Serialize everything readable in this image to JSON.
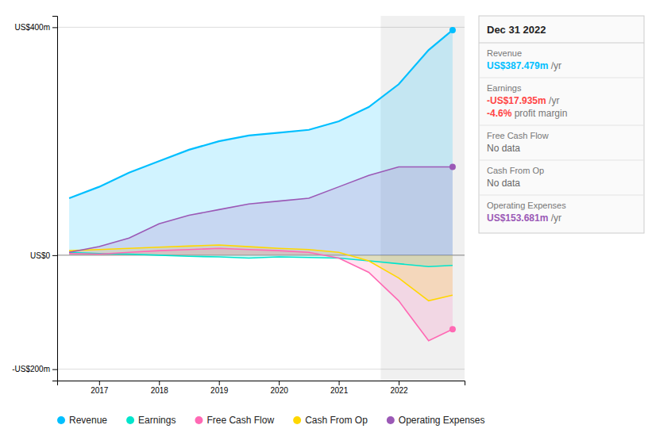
{
  "chart_data": {
    "type": "area",
    "x": [
      2016.5,
      2017,
      2017.5,
      2018,
      2018.5,
      2019,
      2019.5,
      2020,
      2020.5,
      2021,
      2021.5,
      2022,
      2022.5,
      2022.9
    ],
    "series": [
      {
        "name": "Revenue",
        "color": "#00bfff",
        "marker": "circle",
        "values": [
          100,
          120,
          145,
          165,
          185,
          200,
          210,
          215,
          220,
          235,
          260,
          300,
          360,
          395
        ]
      },
      {
        "name": "Earnings",
        "color": "#00e5cc",
        "values": [
          5,
          3,
          2,
          0,
          -2,
          -3,
          -5,
          -3,
          -4,
          -5,
          -10,
          -15,
          -20,
          -18
        ]
      },
      {
        "name": "Free Cash Flow",
        "color": "#ff69b4",
        "marker": "circle",
        "values": [
          3,
          2,
          5,
          8,
          10,
          12,
          10,
          8,
          5,
          -5,
          -30,
          -80,
          -150,
          -130
        ]
      },
      {
        "name": "Cash From Op",
        "color": "#ffd700",
        "values": [
          8,
          10,
          12,
          14,
          16,
          18,
          15,
          12,
          10,
          5,
          -10,
          -40,
          -80,
          -70
        ]
      },
      {
        "name": "Operating Expenses",
        "color": "#9b59b6",
        "marker": "circle",
        "values": [
          5,
          15,
          30,
          55,
          70,
          80,
          90,
          95,
          100,
          120,
          140,
          155,
          155,
          155
        ]
      }
    ],
    "xlim": [
      2016.3,
      2023.1
    ],
    "xticks": [
      2017,
      2018,
      2019,
      2020,
      2021,
      2022
    ],
    "ylim": [
      -220,
      420
    ],
    "yticks": [
      {
        "value": -200,
        "label": "-US$200m"
      },
      {
        "value": 0,
        "label": "US$0"
      },
      {
        "value": 400,
        "label": "US$400m"
      }
    ],
    "grid": true,
    "highlight_x": 2021.7,
    "info_box": {
      "title": "Dec 31 2022",
      "rows": [
        {
          "label": "Revenue",
          "value": "US$387.479m",
          "unit": " /yr",
          "color": "#00bfff"
        },
        {
          "label": "Earnings",
          "value": "-US$17.935m",
          "unit": " /yr",
          "color": "#ff4444",
          "note": {
            "value": "-4.6%",
            "label": " profit margin"
          }
        },
        {
          "label": "Free Cash Flow",
          "value": "No data",
          "color": "#666666"
        },
        {
          "label": "Cash From Op",
          "value": "No data",
          "color": "#666666"
        },
        {
          "label": "Operating Expenses",
          "value": "US$153.681m",
          "unit": " /yr",
          "color": "#9b59b6"
        }
      ]
    }
  }
}
